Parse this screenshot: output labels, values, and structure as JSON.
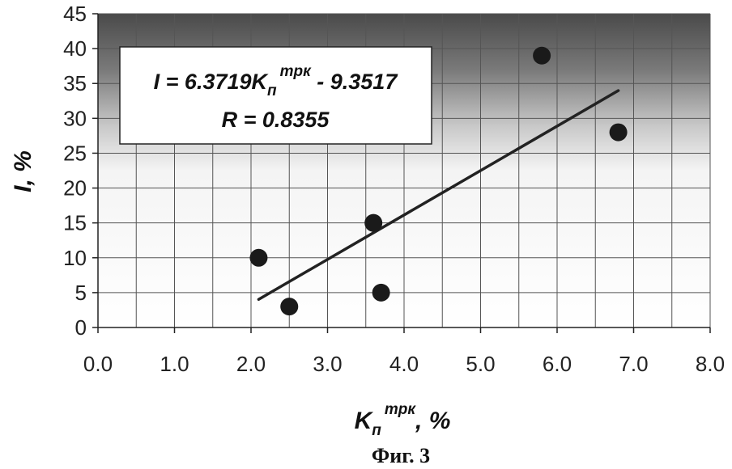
{
  "chart_data": {
    "type": "scatter",
    "points": [
      {
        "x": 2.1,
        "y": 10
      },
      {
        "x": 2.5,
        "y": 3
      },
      {
        "x": 3.6,
        "y": 15
      },
      {
        "x": 3.7,
        "y": 5
      },
      {
        "x": 5.8,
        "y": 39
      },
      {
        "x": 6.8,
        "y": 28
      }
    ],
    "trendline": {
      "x_start": 2.1,
      "x_end": 6.8,
      "slope": 6.3719,
      "intercept": -9.3517
    },
    "xlim": [
      0,
      8
    ],
    "ylim": [
      0,
      45
    ],
    "x_ticks": [
      "0.0",
      "1.0",
      "2.0",
      "3.0",
      "4.0",
      "5.0",
      "6.0",
      "7.0",
      "8.0"
    ],
    "y_ticks": [
      "0",
      "5",
      "10",
      "15",
      "20",
      "25",
      "30",
      "35",
      "40",
      "45"
    ],
    "xlabel": {
      "main": "K",
      "sub": "п",
      "sup": "трк",
      "tail": ", %"
    },
    "ylabel": "I, %",
    "grid": true,
    "background": "gradient dark top to white",
    "annotation": {
      "line1": {
        "lead": "I = 6.3719K",
        "sub": "п",
        "sup": "трк",
        "tail": " - 9.3517"
      },
      "line2": "R = 0.8355"
    },
    "caption": "Фиг. 3"
  }
}
